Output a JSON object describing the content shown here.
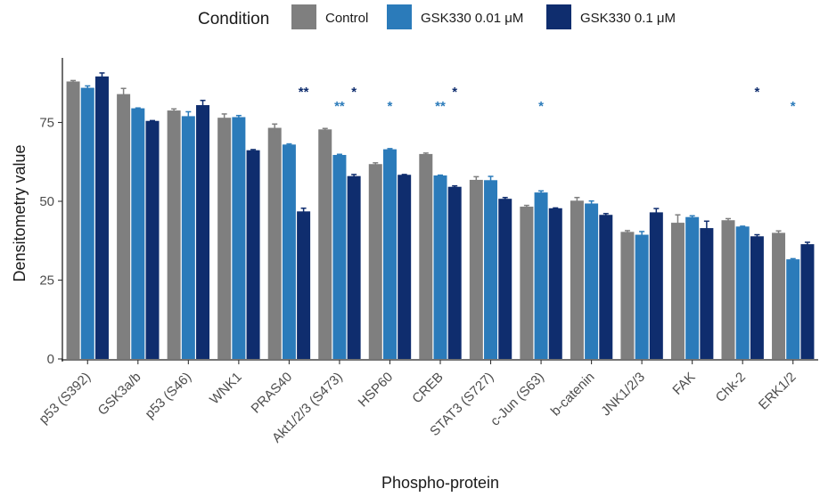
{
  "chart_data": {
    "type": "bar",
    "xlabel": "Phospho-protein",
    "ylabel": "Densitometry value",
    "ylim": [
      0,
      95
    ],
    "yticks": [
      0,
      25,
      50,
      75
    ],
    "legend": {
      "title": "Condition",
      "position": "top"
    },
    "categories": [
      "p53 (S392)",
      "GSK3a/b",
      "p53 (S46)",
      "WNK1",
      "PRAS40",
      "Akt1/2/3 (S473)",
      "HSP60",
      "CREB",
      "STAT3 (S727)",
      "c-Jun (S63)",
      "b-catenin",
      "JNK1/2/3",
      "FAK",
      "Chk-2",
      "ERK1/2"
    ],
    "series": [
      {
        "name": "Control",
        "color": "#7f7f7f",
        "values": [
          88.0,
          84.0,
          78.8,
          76.5,
          73.3,
          72.8,
          61.8,
          65.0,
          56.8,
          48.3,
          50.2,
          40.3,
          43.2,
          44.0,
          40.0
        ],
        "errors": [
          0.3,
          1.8,
          0.5,
          1.2,
          1.2,
          0.3,
          0.4,
          0.3,
          1.0,
          0.4,
          1.0,
          0.4,
          2.5,
          0.5,
          0.6
        ]
      },
      {
        "name": "GSK330 0.01 μM",
        "color": "#2b7bba",
        "values": [
          86.0,
          79.5,
          77.0,
          76.7,
          68.0,
          64.7,
          66.5,
          58.2,
          56.7,
          52.8,
          49.3,
          39.4,
          45.0,
          42.0,
          31.6
        ],
        "errors": [
          0.6,
          0.1,
          1.4,
          0.5,
          0.2,
          0.2,
          0.2,
          0.1,
          1.2,
          0.5,
          0.8,
          1.0,
          0.4,
          0.1,
          0.2
        ]
      },
      {
        "name": "GSK330 0.1 μM",
        "color": "#0f2d6e",
        "values": [
          89.6,
          75.5,
          80.5,
          66.2,
          46.8,
          58.0,
          58.4,
          54.6,
          50.8,
          47.8,
          45.7,
          46.5,
          41.5,
          38.9,
          36.4
        ],
        "errors": [
          1.1,
          0.1,
          1.5,
          0.2,
          1.0,
          0.5,
          0.1,
          0.3,
          0.4,
          0.1,
          0.4,
          1.2,
          2.2,
          0.5,
          0.6
        ]
      }
    ],
    "annotations": [
      {
        "category_index": 4,
        "series_index": 2,
        "text": "**"
      },
      {
        "category_index": 5,
        "series_index": 1,
        "text": "**"
      },
      {
        "category_index": 5,
        "series_index": 2,
        "text": "*"
      },
      {
        "category_index": 6,
        "series_index": 1,
        "text": "*"
      },
      {
        "category_index": 7,
        "series_index": 1,
        "text": "**"
      },
      {
        "category_index": 7,
        "series_index": 2,
        "text": "*"
      },
      {
        "category_index": 9,
        "series_index": 1,
        "text": "*"
      },
      {
        "category_index": 13,
        "series_index": 2,
        "text": "*"
      },
      {
        "category_index": 14,
        "series_index": 1,
        "text": "*"
      }
    ]
  }
}
